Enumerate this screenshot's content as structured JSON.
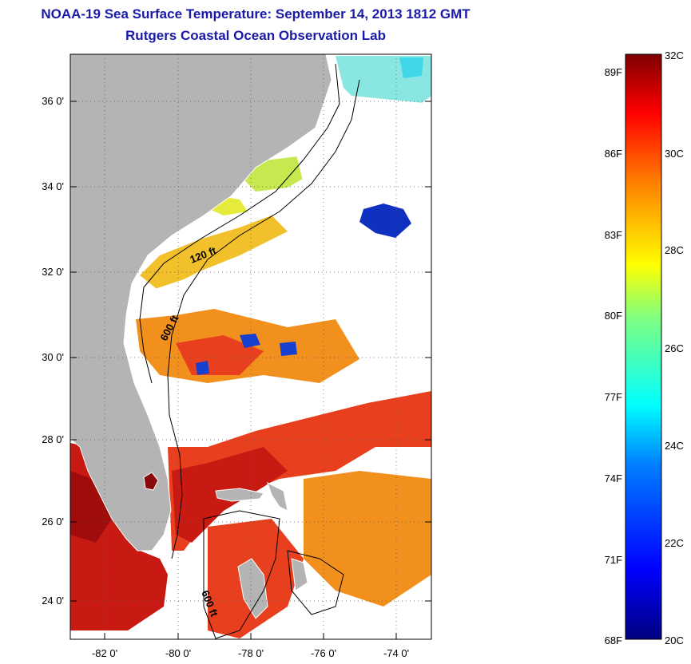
{
  "title": "NOAA-19 Sea Surface Temperature:  September 14, 2013 1812 GMT",
  "subtitle": "Rutgers Coastal Ocean Observation Lab",
  "axes": {
    "lat_ticks": [
      "36 0'",
      "34 0'",
      "32 0'",
      "30 0'",
      "28 0'",
      "26 0'",
      "24 0'"
    ],
    "lon_ticks": [
      "-82 0'",
      "-80 0'",
      "-78 0'",
      "-76 0'",
      "-74 0'"
    ]
  },
  "contour_labels": {
    "c120": "120 ft",
    "c600a": "600 ft",
    "c600b": "600 ft"
  },
  "colorbar": {
    "fahrenheit": [
      "89F",
      "86F",
      "83F",
      "80F",
      "77F",
      "74F",
      "71F",
      "68F"
    ],
    "celsius": [
      "32C",
      "30C",
      "28C",
      "26C",
      "24C",
      "22C",
      "20C"
    ],
    "range_c": [
      20,
      32
    ],
    "colors": [
      "#00007f",
      "#0000ff",
      "#0080ff",
      "#00ffff",
      "#80ff80",
      "#ffff00",
      "#ff8000",
      "#ff0000",
      "#7f0000"
    ]
  },
  "colors": {
    "land": "#b4b4b4",
    "cloud": "#ffffff",
    "warm": "#e8401e",
    "hot": "#c01010",
    "orange": "#f2901e",
    "yellow": "#f2e02a",
    "cool": "#1030c0"
  }
}
